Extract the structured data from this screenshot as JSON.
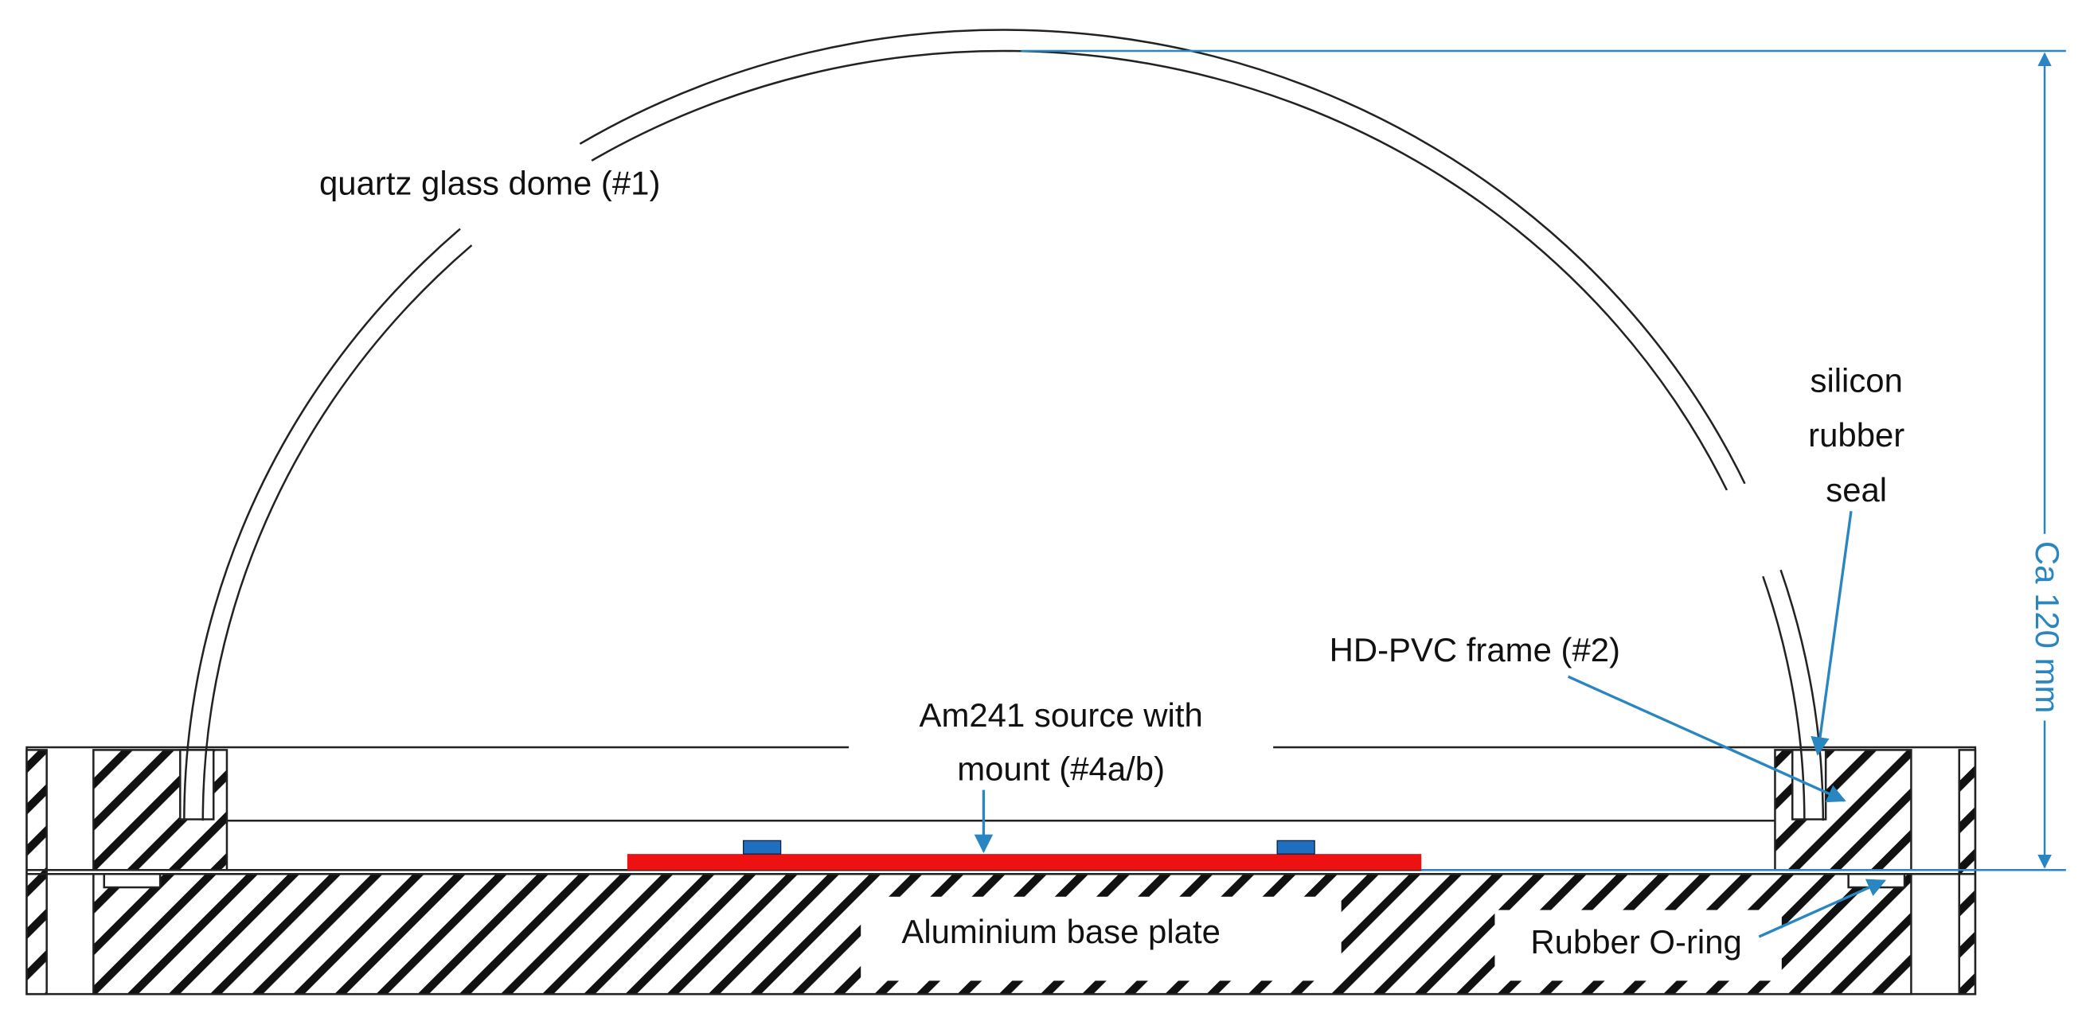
{
  "labels": {
    "dome": "quartz glass dome (#1)",
    "seal": [
      "silicon",
      "rubber",
      "seal"
    ],
    "frame": "HD-PVC frame (#2)",
    "source": [
      "Am241 source with",
      "mount (#4a/b)"
    ],
    "base": "Aluminium base plate",
    "oring": "Rubber O-ring",
    "dimension": "Ca 120 mm"
  }
}
